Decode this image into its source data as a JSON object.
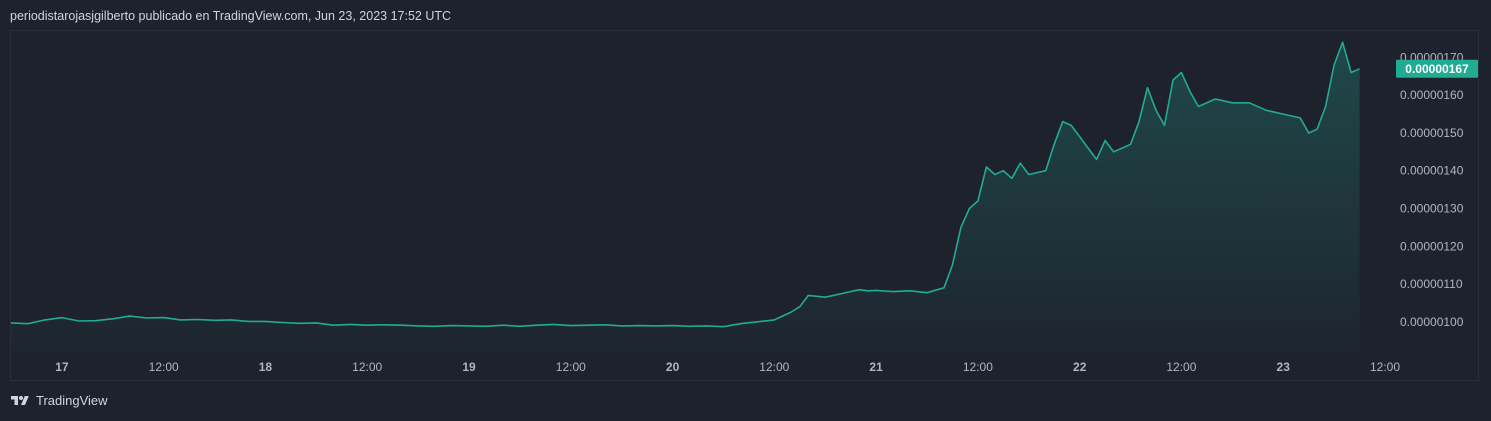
{
  "header": {
    "caption": "periodistarojasjgilberto publicado en TradingView.com, Jun 23, 2023 17:52 UTC"
  },
  "footer": {
    "brand": "TradingView",
    "logo_icon": "tradingview-logo-icon"
  },
  "colors": {
    "background": "#1e222d",
    "line": "#22ab94",
    "price_label_bg": "#22ab94",
    "text": "#d1d4dc",
    "axis_text": "#b2b5be"
  },
  "chart_data": {
    "type": "area",
    "title": "",
    "xlabel": "",
    "ylabel": "",
    "grid": false,
    "x_ticks": [
      {
        "label": "17",
        "bold": true
      },
      {
        "label": "12:00",
        "bold": false
      },
      {
        "label": "18",
        "bold": true
      },
      {
        "label": "12:00",
        "bold": false
      },
      {
        "label": "19",
        "bold": true
      },
      {
        "label": "12:00",
        "bold": false
      },
      {
        "label": "20",
        "bold": true
      },
      {
        "label": "12:00",
        "bold": false
      },
      {
        "label": "21",
        "bold": true
      },
      {
        "label": "12:00",
        "bold": false
      },
      {
        "label": "22",
        "bold": true
      },
      {
        "label": "12:00",
        "bold": false
      },
      {
        "label": "23",
        "bold": true
      },
      {
        "label": "12:00",
        "bold": false
      }
    ],
    "y_ticks": [
      1.7e-06,
      1.6e-06,
      1.5e-06,
      1.4e-06,
      1.3e-06,
      1.2e-06,
      1.1e-06,
      1e-06
    ],
    "y_tick_labels": [
      "0.00000170",
      "0.00000160",
      "0.00000150",
      "0.00000140",
      "0.00000130",
      "0.00000120",
      "0.00000110",
      "0.00000100"
    ],
    "ylim": [
      9.2e-07,
      1.77e-06
    ],
    "x_domain_hours": [
      -6,
      156
    ],
    "x_tick_hours": [
      0,
      12,
      24,
      36,
      48,
      60,
      72,
      84,
      96,
      108,
      120,
      132,
      144,
      156
    ],
    "last_price_label": "0.00000167",
    "series": [
      {
        "x_hours": [
          -6,
          -4,
          -2,
          0,
          2,
          4,
          6,
          8,
          10,
          12,
          14,
          16,
          18,
          20,
          22,
          24,
          26,
          28,
          30,
          32,
          34,
          36,
          38,
          40,
          42,
          44,
          46,
          48,
          50,
          52,
          54,
          56,
          58,
          60,
          62,
          64,
          66,
          68,
          70,
          72,
          74,
          76,
          78,
          80,
          82,
          84,
          86,
          87,
          88,
          90,
          92,
          94,
          95,
          96,
          98,
          100,
          102,
          104,
          105,
          106,
          107,
          108,
          109,
          110,
          111,
          112,
          113,
          114,
          116,
          117,
          118,
          119,
          120,
          121,
          122,
          123,
          124,
          125,
          126,
          127,
          128,
          129,
          130,
          131,
          132,
          133,
          134,
          136,
          138,
          140,
          142,
          144,
          146,
          147,
          148,
          149,
          150,
          151,
          152,
          153
        ],
        "values": [
          9.97e-07,
          9.95e-07,
          1.005e-06,
          1.011e-06,
          1.002e-06,
          1.003e-06,
          1.008e-06,
          1.015e-06,
          1.01e-06,
          1.011e-06,
          1.005e-06,
          1.006e-06,
          1.004e-06,
          1.005e-06,
          1.001e-06,
          1.001e-06,
          9.98e-07,
          9.96e-07,
          9.97e-07,
          9.91e-07,
          9.93e-07,
          9.91e-07,
          9.92e-07,
          9.91e-07,
          9.89e-07,
          9.88e-07,
          9.9e-07,
          9.89e-07,
          9.88e-07,
          9.91e-07,
          9.88e-07,
          9.91e-07,
          9.93e-07,
          9.9e-07,
          9.91e-07,
          9.92e-07,
          9.89e-07,
          9.9e-07,
          9.89e-07,
          9.9e-07,
          9.88e-07,
          9.89e-07,
          9.87e-07,
          9.95e-07,
          1e-06,
          1.005e-06,
          1.026e-06,
          1.04e-06,
          1.07e-06,
          1.065e-06,
          1.075e-06,
          1.085e-06,
          1.082e-06,
          1.083e-06,
          1.08e-06,
          1.082e-06,
          1.077e-06,
          1.09e-06,
          1.15e-06,
          1.25e-06,
          1.3e-06,
          1.32e-06,
          1.41e-06,
          1.39e-06,
          1.4e-06,
          1.38e-06,
          1.42e-06,
          1.39e-06,
          1.4e-06,
          1.47e-06,
          1.53e-06,
          1.52e-06,
          1.49e-06,
          1.46e-06,
          1.43e-06,
          1.48e-06,
          1.45e-06,
          1.46e-06,
          1.47e-06,
          1.53e-06,
          1.62e-06,
          1.56e-06,
          1.52e-06,
          1.64e-06,
          1.66e-06,
          1.61e-06,
          1.57e-06,
          1.59e-06,
          1.58e-06,
          1.58e-06,
          1.56e-06,
          1.55e-06,
          1.54e-06,
          1.5e-06,
          1.51e-06,
          1.57e-06,
          1.68e-06,
          1.74e-06,
          1.66e-06,
          1.67e-06
        ]
      }
    ]
  }
}
